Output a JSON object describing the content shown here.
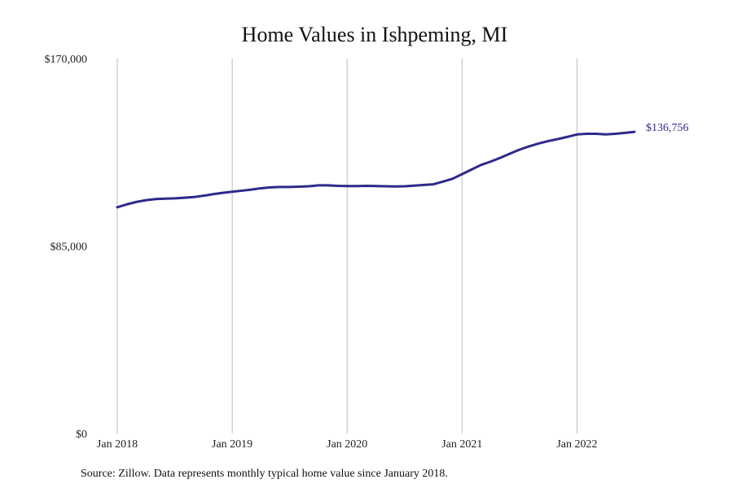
{
  "chart_data": {
    "type": "line",
    "title": "Home Values in Ishpeming, MI",
    "source_note": "Source: Zillow. Data represents monthly typical home value since January 2018.",
    "xlabel": "",
    "ylabel": "",
    "x_start": "2018-01",
    "x_end": "2022-07",
    "x_ticks": [
      "2018-01",
      "2019-01",
      "2020-01",
      "2021-01",
      "2022-01"
    ],
    "x_tick_labels": [
      "Jan 2018",
      "Jan 2019",
      "Jan 2020",
      "Jan 2021",
      "Jan 2022"
    ],
    "ylim": [
      0,
      170000
    ],
    "y_ticks": [
      0,
      85000,
      170000
    ],
    "y_tick_labels": [
      "$0",
      "$85,000",
      "$170,000"
    ],
    "grid": "vertical",
    "series": [
      {
        "color": "#2e2a8a",
        "end_label": "$136,756",
        "points": [
          [
            "2018-01",
            102600
          ],
          [
            "2018-02",
            103900
          ],
          [
            "2018-03",
            105000
          ],
          [
            "2018-04",
            105800
          ],
          [
            "2018-05",
            106300
          ],
          [
            "2018-06",
            106500
          ],
          [
            "2018-07",
            106600
          ],
          [
            "2018-08",
            106900
          ],
          [
            "2018-09",
            107200
          ],
          [
            "2018-10",
            107800
          ],
          [
            "2018-11",
            108500
          ],
          [
            "2018-12",
            109100
          ],
          [
            "2019-01",
            109600
          ],
          [
            "2019-02",
            110100
          ],
          [
            "2019-03",
            110600
          ],
          [
            "2019-04",
            111200
          ],
          [
            "2019-05",
            111600
          ],
          [
            "2019-06",
            111800
          ],
          [
            "2019-07",
            111800
          ],
          [
            "2019-08",
            111900
          ],
          [
            "2019-09",
            112100
          ],
          [
            "2019-10",
            112500
          ],
          [
            "2019-11",
            112500
          ],
          [
            "2019-12",
            112300
          ],
          [
            "2020-01",
            112200
          ],
          [
            "2020-02",
            112200
          ],
          [
            "2020-03",
            112300
          ],
          [
            "2020-04",
            112200
          ],
          [
            "2020-05",
            112100
          ],
          [
            "2020-06",
            112000
          ],
          [
            "2020-07",
            112100
          ],
          [
            "2020-08",
            112400
          ],
          [
            "2020-09",
            112700
          ],
          [
            "2020-10",
            113000
          ],
          [
            "2020-11",
            114200
          ],
          [
            "2020-12",
            115500
          ],
          [
            "2021-01",
            117600
          ],
          [
            "2021-02",
            119700
          ],
          [
            "2021-03",
            121800
          ],
          [
            "2021-04",
            123300
          ],
          [
            "2021-05",
            125000
          ],
          [
            "2021-06",
            126900
          ],
          [
            "2021-07",
            128700
          ],
          [
            "2021-08",
            130200
          ],
          [
            "2021-09",
            131500
          ],
          [
            "2021-10",
            132600
          ],
          [
            "2021-11",
            133500
          ],
          [
            "2021-12",
            134500
          ],
          [
            "2022-01",
            135600
          ],
          [
            "2022-02",
            135900
          ],
          [
            "2022-03",
            135900
          ],
          [
            "2022-04",
            135600
          ],
          [
            "2022-05",
            135900
          ],
          [
            "2022-06",
            136300
          ],
          [
            "2022-07",
            136756
          ]
        ]
      }
    ]
  }
}
